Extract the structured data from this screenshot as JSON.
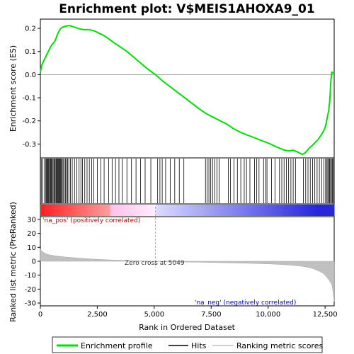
{
  "chart_data": {
    "type": "line",
    "title": "Enrichment plot: V$MEIS1AHOXA9_01",
    "top_panel": {
      "ylabel": "Enrichment score (ES)",
      "ylim": [
        -0.36,
        0.24
      ],
      "yticks": [
        0.2,
        0.1,
        0.0,
        -0.1,
        -0.2,
        -0.3
      ],
      "ytick_labels": [
        "0.2",
        "0.1",
        "0.0",
        "-0.1",
        "-0.2",
        "-0.3"
      ],
      "series": [
        {
          "color": "#00e000",
          "x": [
            0,
            60,
            150,
            250,
            320,
            400,
            480,
            560,
            640,
            700,
            760,
            830,
            900,
            980,
            1060,
            1150,
            1250,
            1350,
            1500,
            1650,
            1800,
            1950,
            2100,
            2250,
            2400,
            2600,
            2800,
            3000,
            3200,
            3500,
            3800,
            4100,
            4400,
            4700,
            5049,
            5400,
            5800,
            6200,
            6600,
            7000,
            7300,
            7600,
            7900,
            8200,
            8500,
            8800,
            9100,
            9400,
            9700,
            9900,
            10100,
            10300,
            10500,
            10700,
            10900,
            11100,
            11300,
            11500,
            11600,
            11700,
            11800,
            11900,
            12000,
            12100,
            12200,
            12300,
            12400,
            12500,
            12550,
            12600,
            12650,
            12700,
            12720,
            12740,
            12760,
            12800,
            12850,
            12900
          ],
          "y": [
            0.01,
            0.04,
            0.06,
            0.08,
            0.095,
            0.11,
            0.125,
            0.135,
            0.145,
            0.16,
            0.175,
            0.19,
            0.2,
            0.205,
            0.208,
            0.21,
            0.212,
            0.21,
            0.205,
            0.2,
            0.196,
            0.194,
            0.195,
            0.192,
            0.188,
            0.178,
            0.168,
            0.155,
            0.14,
            0.12,
            0.1,
            0.075,
            0.05,
            0.025,
            0.0,
            -0.03,
            -0.06,
            -0.09,
            -0.12,
            -0.15,
            -0.17,
            -0.185,
            -0.2,
            -0.215,
            -0.235,
            -0.25,
            -0.262,
            -0.273,
            -0.285,
            -0.292,
            -0.3,
            -0.31,
            -0.318,
            -0.326,
            -0.33,
            -0.327,
            -0.335,
            -0.345,
            -0.34,
            -0.33,
            -0.318,
            -0.31,
            -0.3,
            -0.29,
            -0.28,
            -0.265,
            -0.25,
            -0.23,
            -0.21,
            -0.185,
            -0.16,
            -0.12,
            -0.09,
            -0.05,
            -0.02,
            0.01,
            0.008,
            0.005
          ]
        }
      ]
    },
    "hits_panel": {
      "hit_positions": [
        40,
        110,
        180,
        240,
        270,
        300,
        330,
        360,
        400,
        430,
        460,
        490,
        520,
        560,
        600,
        640,
        680,
        710,
        740,
        770,
        800,
        830,
        860,
        890,
        920,
        960,
        1000,
        1050,
        1100,
        1150,
        1200,
        1250,
        1320,
        1400,
        1500,
        1600,
        1700,
        1780,
        1850,
        1950,
        2050,
        2150,
        2250,
        2350,
        2500,
        2650,
        2800,
        3000,
        3150,
        3300,
        3450,
        3600,
        3800,
        4000,
        4200,
        4400,
        4600,
        4850,
        5150,
        5250,
        5350,
        5500,
        5700,
        5900,
        6100,
        6300,
        7250,
        7320,
        7400,
        7480,
        7560,
        7650,
        7750,
        7850,
        8250,
        8350,
        8500,
        8650,
        8800,
        8950,
        9050,
        9200,
        9400,
        9500,
        9600,
        9800,
        9900,
        9950,
        10150,
        10300,
        10500,
        10600,
        10700,
        10800,
        10900,
        11000,
        11100,
        11200,
        11550,
        11650,
        11750,
        11850,
        11950,
        12050,
        12150,
        12250,
        12350,
        12450,
        12520,
        12580,
        12620,
        12660,
        12700,
        12740,
        12780,
        12820,
        12860
      ]
    },
    "rank_panel": {
      "ylabel": "Ranked list metric (PreRanked)",
      "xlabel": "Rank in Ordered Dataset",
      "ylim": [
        -32,
        32
      ],
      "yticks": [
        30,
        20,
        10,
        0,
        -10,
        -20,
        -30
      ],
      "ytick_labels": [
        "30",
        "20",
        "10",
        "0",
        "-10",
        "-20",
        "-30"
      ],
      "x": [
        0,
        50,
        150,
        300,
        600,
        1000,
        1500,
        2000,
        2500,
        3000,
        3500,
        4000,
        4500,
        5049,
        5500,
        6000,
        7000,
        8000,
        9000,
        10000,
        10500,
        11000,
        11500,
        11800,
        12000,
        12200,
        12400,
        12500,
        12600,
        12700,
        12800,
        12850,
        12900
      ],
      "y": [
        8.5,
        7.5,
        6.2,
        5.0,
        4.0,
        3.2,
        2.5,
        1.9,
        1.4,
        1.0,
        0.7,
        0.4,
        0.2,
        0.0,
        -0.2,
        -0.4,
        -0.7,
        -1.0,
        -1.4,
        -1.9,
        -2.3,
        -2.8,
        -3.6,
        -4.5,
        -5.5,
        -6.8,
        -8.5,
        -10.0,
        -12.0,
        -14.0,
        -17.0,
        -22.0,
        -29.0
      ],
      "pos_label": "'na_pos' (positively correlated)",
      "neg_label": "'na_neg' (negatively correlated)",
      "zero_cross_label": "Zero cross at 5049",
      "zero_cross": 5049
    },
    "xlim": [
      0,
      12900
    ],
    "xticks": [
      0,
      2500,
      5000,
      7500,
      10000,
      12500
    ],
    "xtick_labels": [
      "0",
      "2,500",
      "5,000",
      "7,500",
      "10,000",
      "12,500"
    ],
    "legend": {
      "placement": "bottom",
      "entries": [
        {
          "label": "Enrichment profile",
          "color": "#00e000"
        },
        {
          "label": "Hits",
          "color": "#000000"
        },
        {
          "label": "Ranking metric scores",
          "color": "#c0c0c0"
        }
      ]
    },
    "colors": {
      "profile": "#00e000",
      "pos_text": "#cc0000",
      "neg_text": "#0000cc",
      "metric_fill": "#c0c0c0"
    }
  }
}
